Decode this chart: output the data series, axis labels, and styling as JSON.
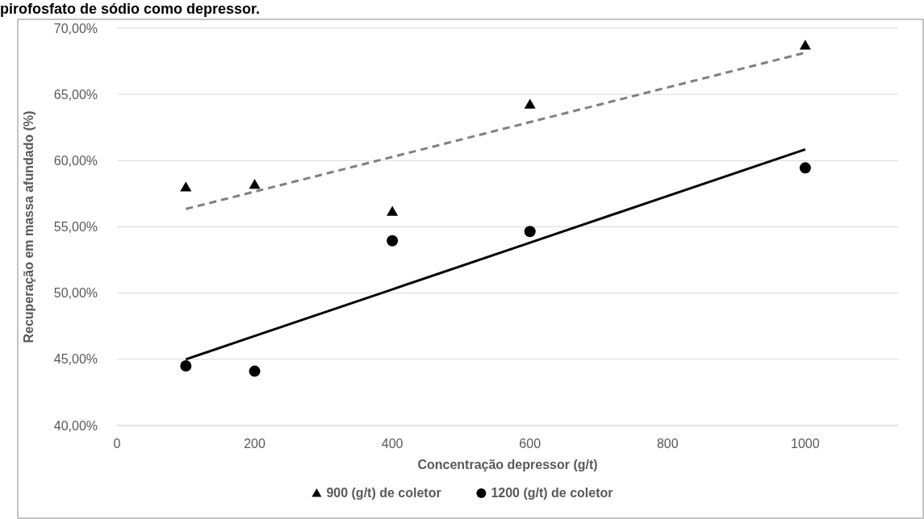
{
  "chart_data": {
    "type": "scatter",
    "title": "pirofosfato de sódio como depressor.",
    "xlabel": "Concentração depressor (g/t)",
    "ylabel": "Recuperação em massa afundado (%)",
    "x": [
      100,
      200,
      400,
      600,
      1000
    ],
    "series": [
      {
        "name": "900 (g/t) de coletor",
        "marker": "triangle",
        "color": "#000000",
        "values": [
          58.0,
          58.2,
          56.15,
          64.25,
          68.7
        ]
      },
      {
        "name": "1200 (g/t) de coletor",
        "marker": "circle",
        "color": "#000000",
        "values": [
          44.5,
          44.1,
          53.95,
          54.65,
          59.45
        ]
      },
      {
        "type": "line",
        "marker": "none",
        "line_style": "dashed",
        "color": "#808080",
        "values": [
          56.35,
          57.66,
          60.28,
          62.91,
          68.15
        ]
      },
      {
        "type": "line",
        "marker": "none",
        "line_style": "solid",
        "color": "#000000",
        "values": [
          45.0,
          46.76,
          50.28,
          53.81,
          60.85
        ]
      }
    ],
    "xlim": [
      0,
      1135
    ],
    "xticks": [
      0,
      200,
      400,
      600,
      800,
      1000
    ],
    "ylim": [
      40,
      70
    ],
    "yticks": [
      {
        "value": 40,
        "label": "40,00%"
      },
      {
        "value": 45,
        "label": "45,00%"
      },
      {
        "value": 50,
        "label": "50,00%"
      },
      {
        "value": 55,
        "label": "55,00%"
      },
      {
        "value": 60,
        "label": "60,00%"
      },
      {
        "value": 65,
        "label": "65,00%"
      },
      {
        "value": 70,
        "label": "70,00%"
      }
    ],
    "grid": "y",
    "legend": "bottom"
  }
}
